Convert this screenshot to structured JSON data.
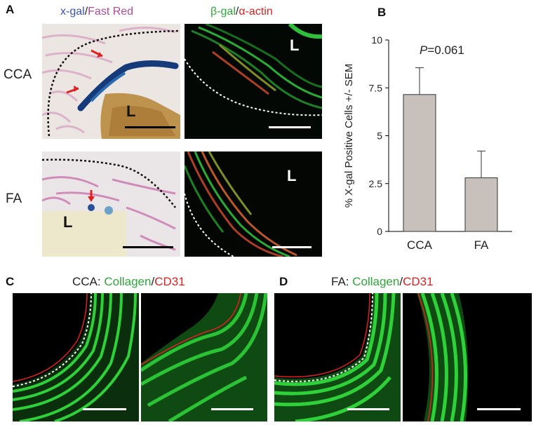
{
  "panel_a": {
    "letter": "A",
    "header_left": {
      "part1": "x-gal",
      "sep": "/",
      "part2": "Fast Red"
    },
    "header_right": {
      "part1": "β-gal",
      "sep": "/",
      "part2": "α-actin"
    },
    "row_labels": [
      "CCA",
      "FA"
    ],
    "lumen_label": "L"
  },
  "panel_b": {
    "letter": "B",
    "annotation": {
      "p": "P",
      "rest": "=0.061"
    }
  },
  "panel_c": {
    "letter": "C",
    "title": {
      "prefix": "CCA: ",
      "part1": "Collagen",
      "sep": "/",
      "part2": "CD31"
    }
  },
  "panel_d": {
    "letter": "D",
    "title": {
      "prefix": "FA: ",
      "part1": "Collagen",
      "sep": "/",
      "part2": "CD31"
    }
  },
  "colors": {
    "bar_fill": "#c8c0bb",
    "collagen_green": "#2fd13a",
    "cd31_red": "#e02020",
    "xgal_blue": "#1c3f8f",
    "fast_red": "#c86ea8"
  },
  "chart_data": {
    "type": "bar",
    "categories": [
      "CCA",
      "FA"
    ],
    "values": [
      7.15,
      2.8
    ],
    "errors": [
      1.4,
      1.4
    ],
    "ylabel": "% X-gal  Positive Cells +/- SEM",
    "ylim": [
      0,
      10
    ],
    "yticks": [
      "0",
      "2.5",
      "5",
      "7.5",
      "10"
    ],
    "ytick_values": [
      0,
      2.5,
      5,
      7.5,
      10
    ],
    "grid": false
  }
}
